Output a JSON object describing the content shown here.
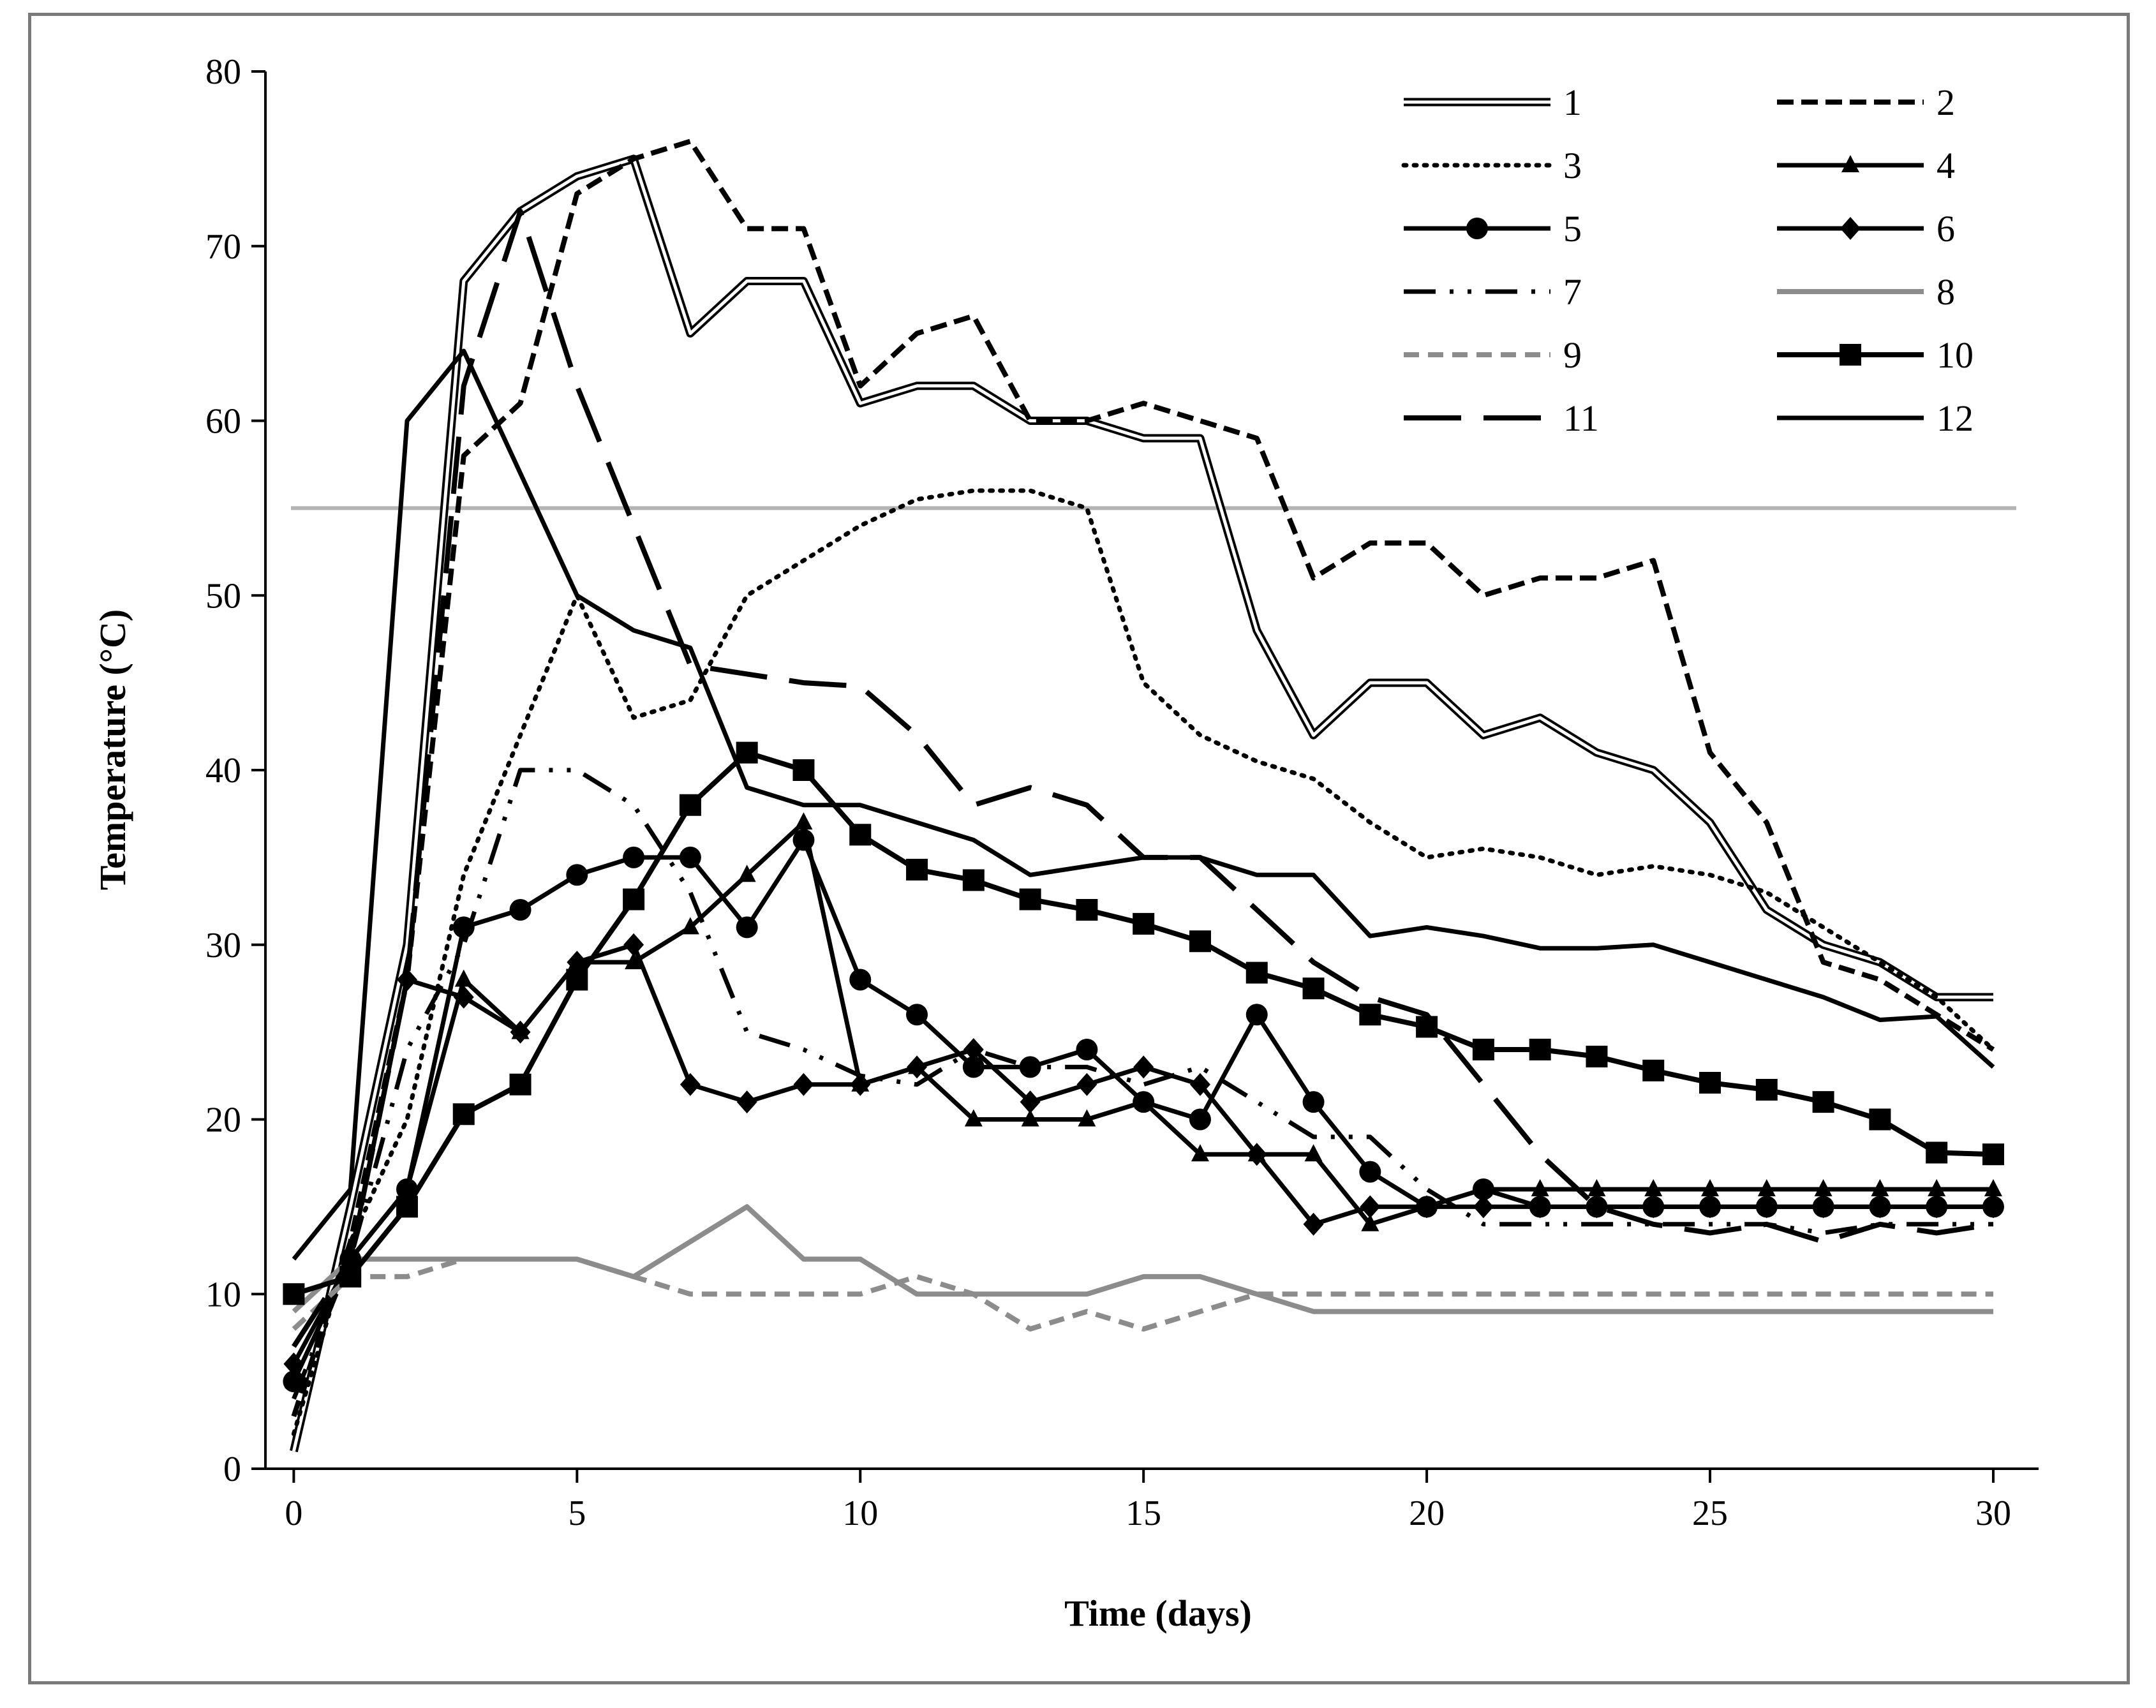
{
  "chart_data": {
    "type": "line",
    "title": "",
    "xlabel": "Time (days)",
    "ylabel": "Temperature (°C)",
    "xlim": [
      -0.5,
      30.8
    ],
    "ylim": [
      0,
      80
    ],
    "xticks": [
      0,
      5,
      10,
      15,
      20,
      25,
      30
    ],
    "yticks": [
      0,
      10,
      20,
      30,
      40,
      50,
      60,
      70,
      80
    ],
    "grid": false,
    "legend_position": "top-right",
    "reference_line": {
      "y": 55,
      "color": "#b3b3b3"
    },
    "series": [
      {
        "name": "1",
        "style": "double",
        "color": "#000000",
        "x": [
          0,
          1,
          2,
          3,
          4,
          5,
          6,
          7,
          8,
          9,
          10,
          11,
          12,
          13,
          14,
          15,
          16,
          17,
          18,
          19,
          20,
          21,
          22,
          23,
          24,
          25,
          26,
          27,
          28,
          29,
          30
        ],
        "y": [
          1,
          15,
          30,
          68,
          72,
          74,
          75,
          65,
          68,
          68,
          61,
          62,
          62,
          60,
          60,
          59,
          59,
          48,
          42,
          45,
          45,
          42,
          43,
          41,
          40,
          37,
          32,
          30,
          29,
          27,
          27
        ]
      },
      {
        "name": "2",
        "style": "dashed",
        "color": "#000000",
        "x": [
          0,
          1,
          2,
          3,
          4,
          5,
          6,
          7,
          8,
          9,
          10,
          11,
          12,
          13,
          14,
          15,
          16,
          17,
          18,
          19,
          20,
          21,
          22,
          23,
          24,
          25,
          26,
          27,
          28,
          29,
          30
        ],
        "y": [
          3,
          13,
          28,
          58,
          61,
          73,
          75,
          76,
          71,
          71,
          62,
          65,
          66,
          60,
          60,
          61,
          60,
          59,
          51,
          53,
          53,
          50,
          51,
          51,
          52,
          41,
          37,
          29,
          28,
          26,
          24
        ]
      },
      {
        "name": "3",
        "style": "dotted",
        "color": "#000000",
        "x": [
          0,
          1,
          2,
          3,
          4,
          5,
          6,
          7,
          8,
          9,
          10,
          11,
          12,
          13,
          14,
          15,
          16,
          17,
          18,
          19,
          20,
          21,
          22,
          23,
          24,
          25,
          26,
          27,
          28,
          29,
          30
        ],
        "y": [
          2,
          13,
          20,
          34,
          42,
          50,
          43,
          44,
          50,
          52,
          54,
          55.5,
          56,
          56,
          55,
          45,
          42,
          40.5,
          39.5,
          37,
          35,
          35.5,
          35,
          34,
          34.5,
          34,
          33,
          31,
          29,
          27,
          24
        ]
      },
      {
        "name": "4",
        "style": "triangle",
        "color": "#000000",
        "x": [
          0,
          1,
          2,
          3,
          4,
          5,
          6,
          7,
          8,
          9,
          10,
          11,
          12,
          13,
          14,
          15,
          16,
          17,
          18,
          19,
          20,
          21,
          22,
          23,
          24,
          25,
          26,
          27,
          28,
          29,
          30
        ],
        "y": [
          5,
          12,
          16,
          28,
          25,
          29,
          29,
          31,
          34,
          37,
          22,
          23,
          20,
          20,
          20,
          21,
          18,
          18,
          18,
          14,
          15,
          16,
          16,
          16,
          16,
          16,
          16,
          16,
          16,
          16,
          16
        ]
      },
      {
        "name": "5",
        "style": "circle",
        "color": "#000000",
        "x": [
          0,
          1,
          2,
          3,
          4,
          5,
          6,
          7,
          8,
          9,
          10,
          11,
          12,
          13,
          14,
          15,
          16,
          17,
          18,
          19,
          20,
          21,
          22,
          23,
          24,
          25,
          26,
          27,
          28,
          29,
          30
        ],
        "y": [
          5,
          12,
          16,
          31,
          32,
          34,
          35,
          35,
          31,
          36,
          28,
          26,
          23,
          23,
          24,
          21,
          20,
          26,
          21,
          17,
          15,
          16,
          15,
          15,
          15,
          15,
          15,
          15,
          15,
          15,
          15
        ]
      },
      {
        "name": "6",
        "style": "diamond",
        "color": "#000000",
        "x": [
          0,
          1,
          2,
          3,
          4,
          5,
          6,
          7,
          8,
          9,
          10,
          11,
          12,
          13,
          14,
          15,
          16,
          17,
          18,
          19,
          20,
          21,
          22,
          23,
          24,
          25,
          26,
          27,
          28,
          29,
          30
        ],
        "y": [
          6,
          12,
          28,
          27,
          25,
          29,
          30,
          22,
          21,
          22,
          22,
          23,
          24,
          21,
          22,
          23,
          22,
          18,
          14,
          15,
          15,
          15,
          15,
          15,
          15,
          15,
          15,
          15,
          15,
          15,
          15
        ]
      },
      {
        "name": "7",
        "style": "dashdotdot",
        "color": "#000000",
        "x": [
          0,
          1,
          2,
          3,
          4,
          5,
          6,
          7,
          8,
          9,
          10,
          11,
          12,
          13,
          14,
          15,
          16,
          17,
          18,
          19,
          20,
          21,
          22,
          23,
          24,
          25,
          26,
          27,
          28,
          29,
          30
        ],
        "y": [
          4,
          12,
          24,
          30,
          40,
          40,
          38,
          33,
          25,
          24,
          22.5,
          22,
          24,
          23,
          23,
          22,
          23,
          21,
          19,
          19,
          16,
          14,
          14,
          14,
          14,
          14,
          14,
          13.5,
          14,
          14,
          14
        ]
      },
      {
        "name": "8",
        "style": "solid-gray",
        "color": "#8c8c8c",
        "x": [
          0,
          1,
          2,
          3,
          4,
          5,
          6,
          7,
          8,
          9,
          10,
          11,
          12,
          13,
          14,
          15,
          16,
          17,
          18,
          19,
          20,
          21,
          22,
          23,
          24,
          25,
          26,
          27,
          28,
          29,
          30
        ],
        "y": [
          9,
          12,
          12,
          12,
          12,
          12,
          11,
          13,
          15,
          12,
          12,
          10,
          10,
          10,
          10,
          11,
          11,
          10,
          9,
          9,
          9,
          9,
          9,
          9,
          9,
          9,
          9,
          9,
          9,
          9,
          9
        ]
      },
      {
        "name": "9",
        "style": "dashed-gray",
        "color": "#8c8c8c",
        "x": [
          0,
          1,
          2,
          3,
          4,
          5,
          6,
          7,
          8,
          9,
          10,
          11,
          12,
          13,
          14,
          15,
          16,
          17,
          18,
          19,
          20,
          21,
          22,
          23,
          24,
          25,
          26,
          27,
          28,
          29,
          30
        ],
        "y": [
          8,
          11,
          11,
          12,
          12,
          12,
          11,
          10,
          10,
          10,
          10,
          11,
          10,
          8,
          9,
          8,
          9,
          10,
          10,
          10,
          10,
          10,
          10,
          10,
          10,
          10,
          10,
          10,
          10,
          10,
          10
        ]
      },
      {
        "name": "10",
        "style": "square",
        "color": "#000000",
        "x": [
          0,
          1,
          2,
          3,
          4,
          5,
          6,
          7,
          8,
          9,
          10,
          11,
          12,
          13,
          14,
          15,
          16,
          17,
          18,
          19,
          20,
          21,
          22,
          23,
          24,
          25,
          26,
          27,
          28,
          29,
          30
        ],
        "y": [
          10,
          11,
          15,
          20.3,
          22,
          28,
          32.6,
          38,
          41,
          40,
          36.3,
          34.3,
          33.7,
          32.6,
          32,
          31.2,
          30.2,
          28.4,
          27.5,
          26,
          25.3,
          24,
          24,
          23.6,
          22.8,
          22.1,
          21.7,
          21,
          20,
          18.1,
          18
        ]
      },
      {
        "name": "11",
        "style": "longdash",
        "color": "#000000",
        "x": [
          0,
          1,
          2,
          3,
          4,
          5,
          6,
          7,
          8,
          9,
          10,
          11,
          12,
          13,
          14,
          15,
          16,
          17,
          18,
          19,
          20,
          21,
          22,
          23,
          24,
          25,
          26,
          27,
          28,
          29,
          30
        ],
        "y": [
          7,
          12,
          28,
          62,
          72,
          62,
          54,
          46,
          45.5,
          45,
          44.8,
          42,
          38,
          39,
          38,
          35,
          35,
          32,
          29,
          27,
          26,
          22,
          18,
          15,
          14,
          13.5,
          14,
          13,
          14,
          13.5,
          14
        ]
      },
      {
        "name": "12",
        "style": "solid",
        "color": "#000000",
        "x": [
          0,
          1,
          2,
          3,
          4,
          5,
          6,
          7,
          8,
          9,
          10,
          11,
          12,
          13,
          14,
          15,
          16,
          17,
          18,
          19,
          20,
          21,
          22,
          23,
          24,
          25,
          26,
          27,
          28,
          29,
          30
        ],
        "y": [
          12,
          16,
          60,
          64,
          57,
          50,
          48,
          47,
          39,
          38,
          38,
          37,
          36,
          34,
          34.5,
          35,
          35,
          34,
          34,
          30.5,
          31,
          30.5,
          29.8,
          29.8,
          30,
          29,
          28,
          27,
          25.7,
          25.9,
          23
        ]
      }
    ]
  }
}
